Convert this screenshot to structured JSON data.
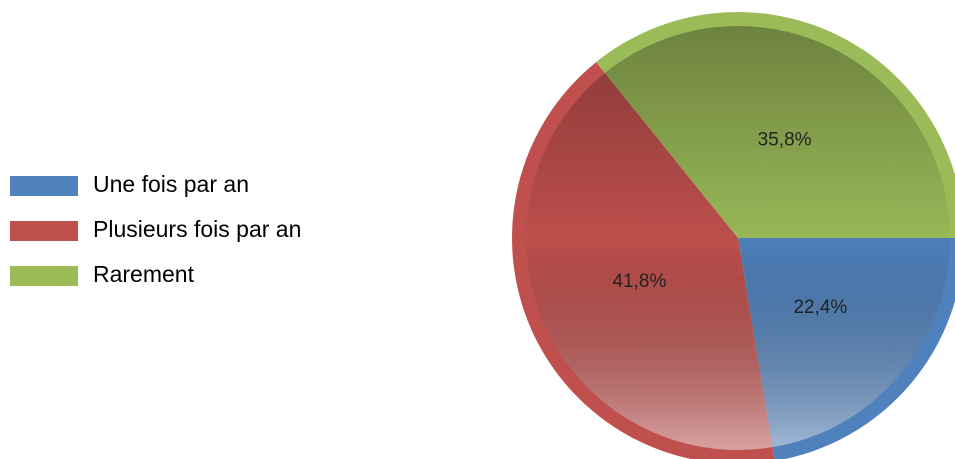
{
  "chart_data": {
    "type": "pie",
    "categories": [
      "Une fois par an",
      "Plusieurs fois par an",
      "Rarement"
    ],
    "values": [
      22.4,
      41.8,
      35.8
    ],
    "value_labels": [
      "22,4%",
      "41,8%",
      "35,8%"
    ],
    "colors": [
      "#4f81bd",
      "#c0504d",
      "#9bbb59"
    ],
    "legend": "left"
  }
}
